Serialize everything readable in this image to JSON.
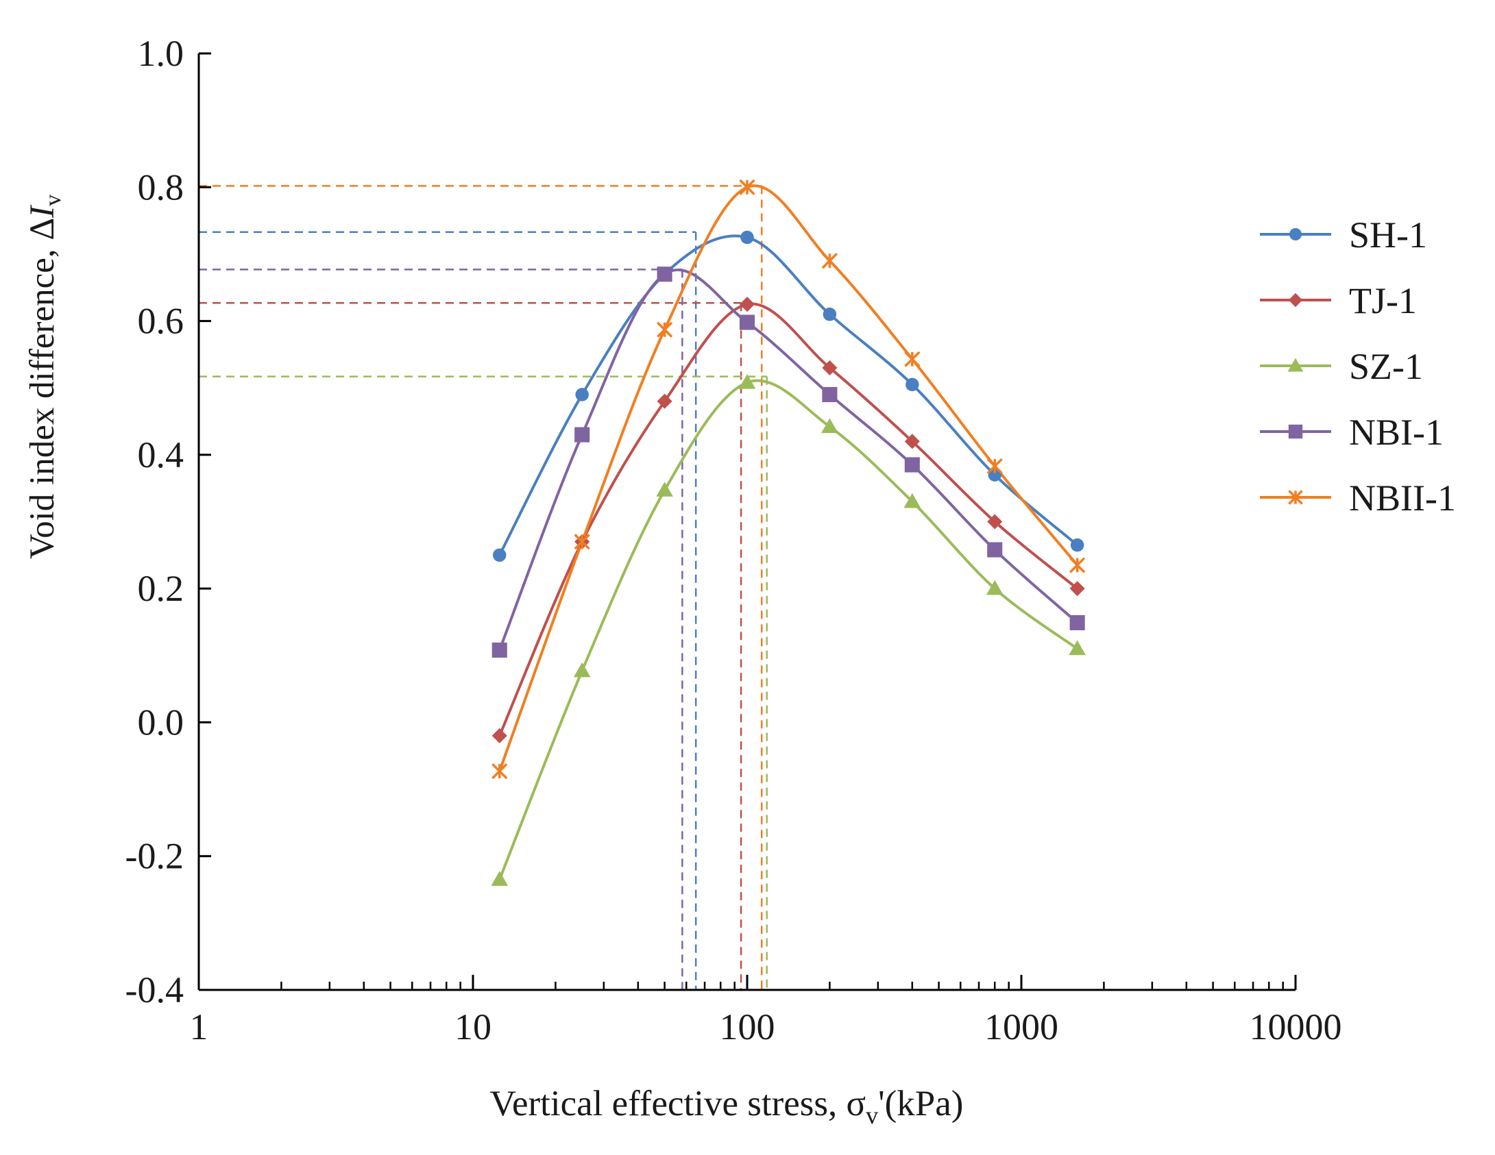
{
  "chart_data": {
    "type": "line",
    "title": "",
    "xlabel": "Vertical effective stress, σ",
    "xlabel_sub": "v",
    "xlabel_suffix": "'(kPa)",
    "ylabel": "Void index difference, Δ",
    "ylabel_italic": "I",
    "ylabel_sub": "v",
    "x_scale": "log",
    "xlim": [
      1,
      10000
    ],
    "ylim": [
      -0.4,
      1.0
    ],
    "x_ticks": [
      1,
      10,
      100,
      1000,
      10000
    ],
    "x_tick_labels": [
      "1",
      "10",
      "100",
      "1000",
      "10000"
    ],
    "y_ticks": [
      -0.4,
      -0.2,
      0.0,
      0.2,
      0.4,
      0.6,
      0.8,
      1.0
    ],
    "y_tick_labels": [
      "-0.4",
      "-0.2",
      "0.0",
      "0.2",
      "0.4",
      "0.6",
      "0.8",
      "1.0"
    ],
    "grid": false,
    "legend_position": "right",
    "x": [
      12.5,
      25,
      50,
      100,
      200,
      400,
      800,
      1600
    ],
    "series": [
      {
        "name": "SH-1",
        "color": "#4a7fc1",
        "marker": "circle",
        "values": [
          0.25,
          0.49,
          0.67,
          0.725,
          0.61,
          0.505,
          0.37,
          0.265
        ],
        "peak_x": 65,
        "peak_y": 0.733
      },
      {
        "name": "TJ-1",
        "color": "#c0504d",
        "marker": "diamond",
        "values": [
          -0.02,
          0.27,
          0.48,
          0.625,
          0.53,
          0.42,
          0.3,
          0.2
        ],
        "peak_x": 95,
        "peak_y": 0.627
      },
      {
        "name": "SZ-1",
        "color": "#9bbb59",
        "marker": "triangle",
        "values": [
          -0.235,
          0.077,
          0.347,
          0.508,
          0.442,
          0.33,
          0.2,
          0.11
        ],
        "peak_x": 118,
        "peak_y": 0.517
      },
      {
        "name": "NBI-1",
        "color": "#8064a2",
        "marker": "square",
        "values": [
          0.108,
          0.43,
          0.67,
          0.598,
          0.49,
          0.385,
          0.258,
          0.149
        ],
        "peak_x": 58,
        "peak_y": 0.677
      },
      {
        "name": "NBII-1",
        "color": "#f07f22",
        "marker": "star",
        "values": [
          -0.073,
          0.27,
          0.587,
          0.8,
          0.69,
          0.543,
          0.383,
          0.235
        ],
        "peak_x": 113,
        "peak_y": 0.802
      }
    ]
  }
}
